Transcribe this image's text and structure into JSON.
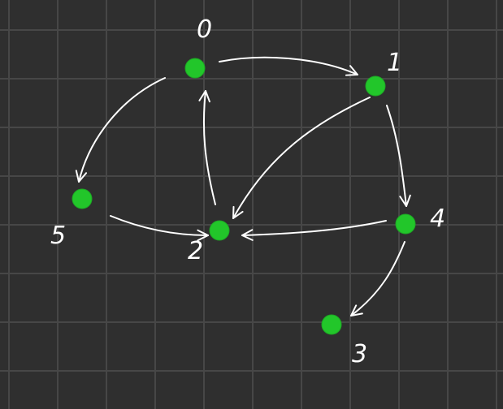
{
  "diagram": {
    "type": "directed-graph",
    "colors": {
      "background": "#2f2f2f",
      "grid": "#474747",
      "node": "#22c62a",
      "edge": "#ffffff",
      "label": "#ffffff"
    },
    "nodes": [
      {
        "id": "0",
        "label": "0"
      },
      {
        "id": "1",
        "label": "1"
      },
      {
        "id": "2",
        "label": "2"
      },
      {
        "id": "3",
        "label": "3"
      },
      {
        "id": "4",
        "label": "4"
      },
      {
        "id": "5",
        "label": "5"
      }
    ],
    "edges": [
      {
        "from": "0",
        "to": "1"
      },
      {
        "from": "0",
        "to": "5"
      },
      {
        "from": "1",
        "to": "2"
      },
      {
        "from": "1",
        "to": "4"
      },
      {
        "from": "2",
        "to": "0"
      },
      {
        "from": "4",
        "to": "2"
      },
      {
        "from": "4",
        "to": "3"
      },
      {
        "from": "5",
        "to": "2"
      }
    ]
  }
}
